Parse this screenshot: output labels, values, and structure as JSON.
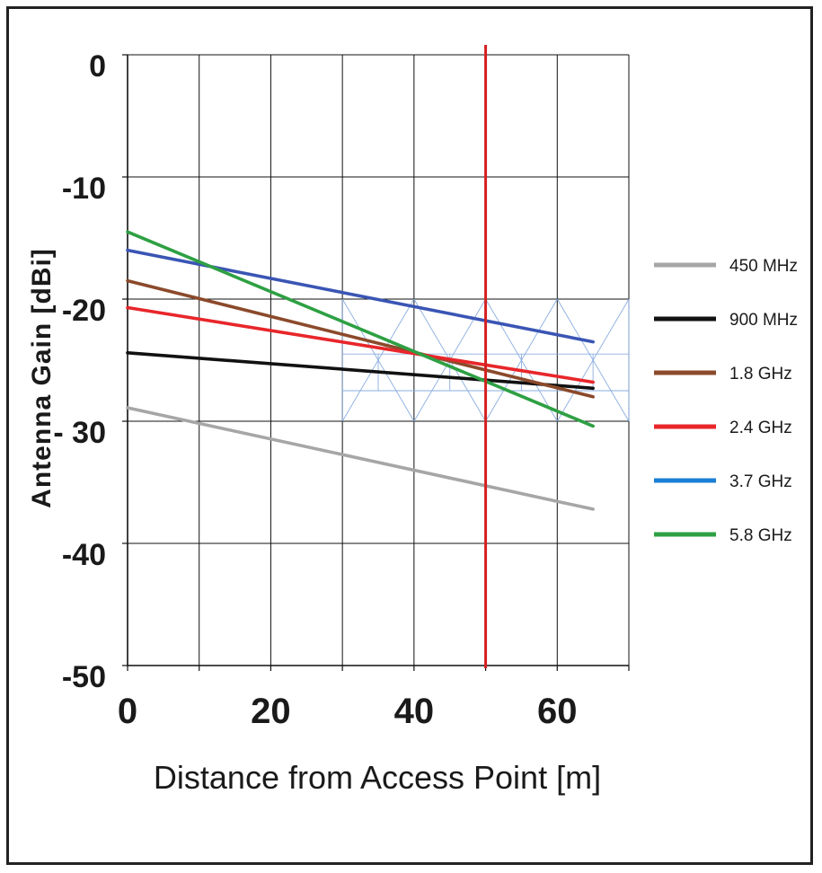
{
  "chart_data": {
    "type": "line",
    "xlabel": "Distance from Access Point [m]",
    "ylabel": "Antenna Gain [dBi]",
    "xlim": [
      0,
      70
    ],
    "ylim": [
      -50,
      0
    ],
    "x_ticks": [
      "0",
      "20",
      "40",
      "60"
    ],
    "x_tick_values": [
      0,
      20,
      40,
      60
    ],
    "y_ticks": [
      "0",
      "-10",
      "-20",
      "- 30",
      "-40",
      "-50"
    ],
    "y_tick_values": [
      0,
      -10,
      -20,
      -30,
      -40,
      -50
    ],
    "grid": true,
    "legend_position": "right",
    "marker_line": {
      "x": 50,
      "color": "#d42020"
    },
    "series": [
      {
        "name": "450 MHz",
        "color": "#a6a6a6",
        "x": [
          0,
          65
        ],
        "y": [
          -28.9,
          -37.2
        ]
      },
      {
        "name": "900 MHz",
        "color": "#111111",
        "x": [
          0,
          65
        ],
        "y": [
          -24.4,
          -27.3
        ]
      },
      {
        "name": "1.8 GHz",
        "color": "#8b4a2b",
        "x": [
          0,
          65
        ],
        "y": [
          -18.5,
          -28.0
        ]
      },
      {
        "name": "2.4 GHz",
        "color": "#e8262a",
        "x": [
          0,
          65
        ],
        "y": [
          -20.7,
          -26.8
        ]
      },
      {
        "name": "3.7 GHz",
        "color": "#3a55b4",
        "legend_color": "#1a7fd4",
        "x": [
          0,
          65
        ],
        "y": [
          -16.0,
          -23.5
        ]
      },
      {
        "name": "5.8 GHz",
        "color": "#2ea043",
        "x": [
          0,
          65
        ],
        "y": [
          -14.5,
          -30.4
        ]
      }
    ]
  }
}
